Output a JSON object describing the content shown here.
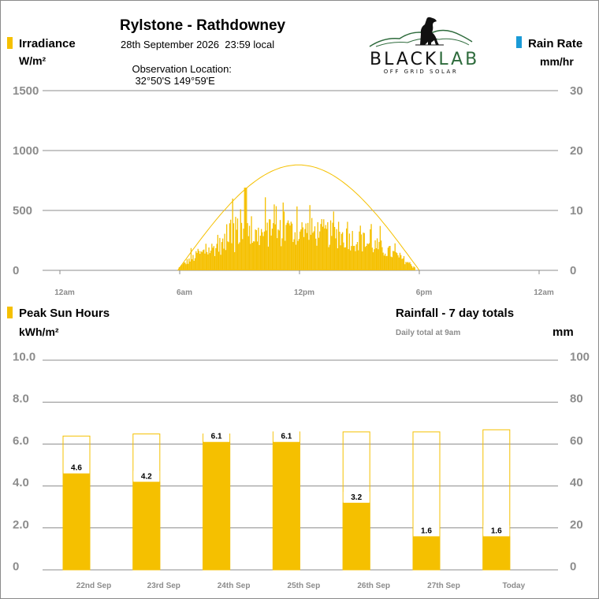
{
  "header": {
    "site": "Rylstone - Rathdowney",
    "datetime": "28th September 2026  23:59 local",
    "location_label": "Observation Location:",
    "location_value": "32°50'S 149°59'E"
  },
  "logo": {
    "word_black": "BLACK",
    "word_green": "LAB",
    "tagline": "OFF GRID SOLAR",
    "icon": "dog-silhouette-icon"
  },
  "colors": {
    "irradiance": "#f5c000",
    "rain": "#1a9ad6",
    "grid": "#8c8c8c",
    "logo_green": "#2e6b3c"
  },
  "top_panel": {
    "left_legend": "Irradiance",
    "left_unit": "W/m²",
    "right_legend": "Rain Rate",
    "right_unit": "mm/hr"
  },
  "bottom_panel": {
    "left_legend": "Peak Sun Hours",
    "left_unit": "kWh/m²",
    "right_title": "Rainfall - 7 day totals",
    "right_note": "Daily total at 9am",
    "right_unit": "mm"
  },
  "chart_data": [
    {
      "type": "bar",
      "name": "irradiance-24h",
      "y_left_ticks": [
        "1500",
        "1000",
        "500",
        "0"
      ],
      "y_left_lim": [
        0,
        1500
      ],
      "y_right_ticks": [
        "30",
        "20",
        "10",
        "0"
      ],
      "y_right_lim": [
        0,
        30
      ],
      "x_ticks": [
        "12am",
        "6am",
        "12pm",
        "6pm",
        "12am"
      ],
      "x_tick_hours": [
        0,
        6,
        12,
        18,
        24
      ],
      "clear_sky_curve": {
        "start_hour": 5.9,
        "end_hour": 18.0,
        "peak_hour": 12.0,
        "peak_value": 880
      },
      "irradiance_start_hour": 5.9,
      "irradiance_end_hour": 17.8,
      "irradiance_peak_value": 690,
      "rain_rate": [],
      "grid": true
    },
    {
      "type": "bar",
      "name": "seven-day",
      "categories": [
        "22nd Sep",
        "23rd Sep",
        "24th Sep",
        "25th Sep",
        "26th Sep",
        "27th Sep",
        "Today"
      ],
      "y_left_ticks": [
        "10.0",
        "8.0",
        "6.0",
        "4.0",
        "2.0",
        "0"
      ],
      "y_left_lim": [
        0,
        10
      ],
      "y_right_ticks": [
        "100",
        "80",
        "60",
        "40",
        "20",
        "0"
      ],
      "y_right_lim": [
        0,
        100
      ],
      "series": [
        {
          "name": "Peak Sun Hours",
          "values": [
            4.6,
            4.2,
            6.1,
            6.1,
            3.2,
            1.6,
            1.6
          ],
          "labels": [
            "4.6",
            "4.2",
            "6.1",
            "6.1",
            "3.2",
            "1.6",
            "1.6"
          ]
        },
        {
          "values": [
            6.4,
            6.5,
            6.5,
            6.6,
            6.6,
            6.6,
            6.7
          ],
          "style": "outline"
        },
        {
          "name": "Rainfall",
          "values": [
            0,
            0,
            0,
            0,
            0,
            0,
            0
          ]
        }
      ],
      "grid": true
    }
  ]
}
